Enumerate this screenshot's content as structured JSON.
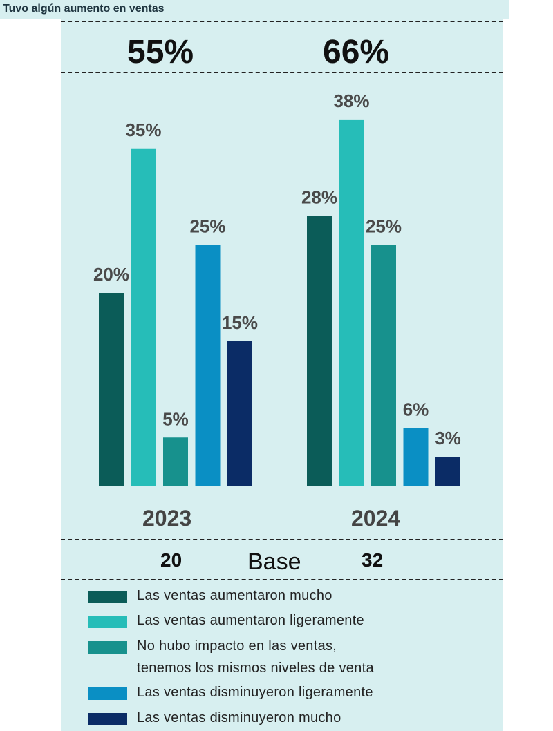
{
  "header": {
    "title": "Tuvo algún aumento en ventas"
  },
  "summary": {
    "pct_2023": "55%",
    "pct_2024": "66%"
  },
  "base": {
    "label": "Base",
    "n_2023": "20",
    "n_2024": "32"
  },
  "chart_data": {
    "type": "bar",
    "categories": [
      "2023",
      "2024"
    ],
    "ylim": [
      0,
      40
    ],
    "grid": false,
    "legend_position": "bottom",
    "series": [
      {
        "name": "Las ventas aumentaron mucho",
        "values": [
          20,
          28
        ],
        "labels": [
          "20%",
          "28%"
        ],
        "color": "#0b5c58"
      },
      {
        "name": "Las ventas aumentaron ligeramente",
        "values": [
          35,
          38
        ],
        "labels": [
          "35%",
          "38%"
        ],
        "color": "#26bdb8"
      },
      {
        "name": "No hubo impacto en las ventas, tenemos los mismos niveles de venta",
        "values": [
          5,
          25
        ],
        "labels": [
          "5%",
          "25%"
        ],
        "color": "#17918d"
      },
      {
        "name": "Las ventas disminuyeron ligeramente",
        "values": [
          25,
          6
        ],
        "labels": [
          "25%",
          "6%"
        ],
        "color": "#0a8fc4"
      },
      {
        "name": "Las ventas disminuyeron mucho",
        "values": [
          15,
          3
        ],
        "labels": [
          "15%",
          "3%"
        ],
        "color": "#0b2c66"
      }
    ]
  },
  "legend": [
    {
      "line1": "Las ventas aumentaron mucho",
      "line2": ""
    },
    {
      "line1": "Las ventas aumentaron ligeramente",
      "line2": ""
    },
    {
      "line1": "No hubo impacto en las ventas,",
      "line2": "tenemos los mismos niveles de venta"
    },
    {
      "line1": "Las ventas disminuyeron ligeramente",
      "line2": ""
    },
    {
      "line1": "Las ventas disminuyeron mucho",
      "line2": ""
    }
  ]
}
